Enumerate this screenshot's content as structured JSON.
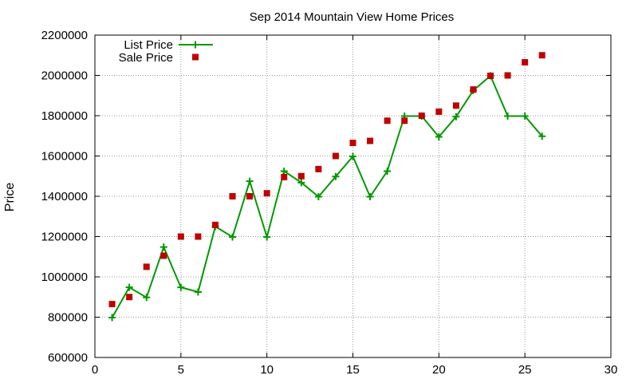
{
  "chart_data": {
    "type": "line",
    "title": "Sep 2014 Mountain View Home Prices",
    "xlabel": "",
    "ylabel": "Price",
    "xlim": [
      0,
      30
    ],
    "ylim": [
      600000,
      2200000
    ],
    "x_ticks": [
      0,
      5,
      10,
      15,
      20,
      25,
      30
    ],
    "y_ticks": [
      600000,
      800000,
      1000000,
      1200000,
      1400000,
      1600000,
      1800000,
      2000000,
      2200000
    ],
    "grid": true,
    "legend_position": "top-left",
    "series": [
      {
        "name": "List Price",
        "style": "lines-points",
        "marker": "plus",
        "color": "#009900",
        "x": [
          1,
          2,
          3,
          4,
          5,
          6,
          7,
          8,
          9,
          10,
          11,
          12,
          13,
          14,
          15,
          16,
          17,
          18,
          19,
          20,
          21,
          22,
          23,
          24,
          25,
          26
        ],
        "values": [
          798000,
          948000,
          898000,
          1148000,
          948000,
          925000,
          1250000,
          1198000,
          1475000,
          1198000,
          1525000,
          1468000,
          1398000,
          1498000,
          1598000,
          1398000,
          1525000,
          1798000,
          1798000,
          1695000,
          1795000,
          1925000,
          1998000,
          1798000,
          1798000,
          1698000
        ]
      },
      {
        "name": "Sale Price",
        "style": "points",
        "marker": "square",
        "color": "#c00000",
        "x": [
          1,
          2,
          3,
          4,
          5,
          6,
          7,
          8,
          9,
          10,
          11,
          12,
          13,
          14,
          15,
          16,
          17,
          18,
          19,
          20,
          21,
          22,
          23,
          24,
          25,
          26
        ],
        "values": [
          865000,
          900000,
          1050000,
          1105000,
          1200000,
          1200000,
          1258000,
          1400000,
          1400000,
          1415000,
          1495000,
          1500000,
          1535000,
          1600000,
          1665000,
          1675000,
          1775000,
          1775000,
          1800000,
          1820000,
          1850000,
          1930000,
          1998000,
          2000000,
          2065000,
          2100000
        ]
      }
    ]
  }
}
